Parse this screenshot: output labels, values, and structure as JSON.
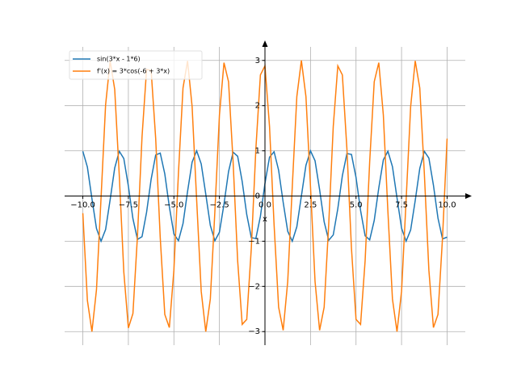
{
  "chart_data": {
    "type": "line",
    "xlabel": "x",
    "x": [
      -10,
      -9.75,
      -9.5,
      -9.25,
      -9,
      -8.75,
      -8.5,
      -8.25,
      -8,
      -7.75,
      -7.5,
      -7.25,
      -7,
      -6.75,
      -6.5,
      -6.25,
      -6,
      -5.75,
      -5.5,
      -5.25,
      -5,
      -4.75,
      -4.5,
      -4.25,
      -4,
      -3.75,
      -3.5,
      -3.25,
      -3,
      -2.75,
      -2.5,
      -2.25,
      -2,
      -1.75,
      -1.5,
      -1.25,
      -1,
      -0.75,
      -0.5,
      -0.25,
      0,
      0.25,
      0.5,
      0.75,
      1,
      1.25,
      1.5,
      1.75,
      2,
      2.25,
      2.5,
      2.75,
      3,
      3.25,
      3.5,
      3.75,
      4,
      4.25,
      4.5,
      4.75,
      5,
      5.25,
      5.5,
      5.75,
      6,
      6.25,
      6.5,
      6.75,
      7,
      7.25,
      7.5,
      7.75,
      8,
      8.25,
      8.5,
      8.75,
      9,
      9.25,
      9.5,
      9.75,
      10
    ],
    "series": [
      {
        "name": "sin(3*x - 1*6)",
        "color": "#1f77b4",
        "values": [
          0.99,
          0.64,
          -0.06,
          -0.72,
          -1.0,
          -0.74,
          -0.08,
          0.62,
          0.99,
          0.83,
          0.22,
          -0.5,
          -0.96,
          -0.9,
          -0.36,
          0.37,
          0.91,
          0.95,
          0.49,
          -0.24,
          -0.84,
          -0.99,
          -0.61,
          0.1,
          0.75,
          1.0,
          0.71,
          0.04,
          -0.65,
          -0.99,
          -0.8,
          -0.18,
          0.54,
          0.97,
          0.88,
          0.32,
          -0.41,
          -0.92,
          -0.94,
          -0.45,
          0.28,
          0.86,
          0.98,
          0.57,
          -0.14,
          -0.78,
          -1.0,
          -0.68,
          0.0,
          0.68,
          1.0,
          0.78,
          0.14,
          -0.57,
          -0.98,
          -0.86,
          -0.28,
          0.45,
          0.94,
          0.92,
          0.41,
          -0.32,
          -0.88,
          -0.97,
          -0.54,
          0.18,
          0.8,
          0.99,
          0.65,
          -0.04,
          -0.71,
          -1.0,
          -0.75,
          -0.1,
          0.61,
          0.99,
          0.84,
          0.24,
          -0.49,
          -0.95,
          -0.91
        ]
      },
      {
        "name": "f'(x) = 3*cos(-6 + 3*x)",
        "color": "#ff7f0e",
        "values": [
          -0.38,
          -2.31,
          -3.0,
          -2.07,
          -0.04,
          2.02,
          2.99,
          2.36,
          0.46,
          -1.68,
          -2.92,
          -2.6,
          -0.88,
          1.31,
          2.8,
          2.78,
          1.27,
          -0.92,
          -2.62,
          -2.91,
          -1.64,
          0.51,
          2.39,
          2.99,
          1.98,
          -0.09,
          -2.11,
          -3.0,
          -2.28,
          -0.34,
          1.79,
          2.95,
          2.53,
          0.76,
          -1.43,
          -2.84,
          -2.73,
          -1.16,
          1.04,
          2.68,
          2.88,
          1.54,
          -0.63,
          -2.46,
          -2.97,
          -1.89,
          0.21,
          2.2,
          3.0,
          2.2,
          0.21,
          -1.89,
          -2.97,
          -2.46,
          -0.63,
          1.54,
          2.88,
          2.68,
          1.04,
          -1.16,
          -2.73,
          -2.84,
          -1.43,
          0.76,
          2.53,
          2.95,
          1.79,
          -0.34,
          -2.28,
          -3.0,
          -2.11,
          -0.09,
          1.98,
          2.99,
          2.39,
          0.51,
          -1.64,
          -2.91,
          -2.62,
          -0.92,
          1.27
        ]
      }
    ],
    "xlim": [
      -11,
      11
    ],
    "ylim": [
      -3.3,
      3.3
    ],
    "xticks": [
      {
        "value": -10,
        "label": "−10.0"
      },
      {
        "value": -7.5,
        "label": "−7.5"
      },
      {
        "value": -5,
        "label": "−5.0"
      },
      {
        "value": -2.5,
        "label": "−2.5"
      },
      {
        "value": 0,
        "label": "0.0"
      },
      {
        "value": 2.5,
        "label": "2.5"
      },
      {
        "value": 5,
        "label": "5.0"
      },
      {
        "value": 7.5,
        "label": "7.5"
      },
      {
        "value": 10,
        "label": "10.0"
      }
    ],
    "yticks": [
      {
        "value": -3,
        "label": "−3"
      },
      {
        "value": -2,
        "label": "−2"
      },
      {
        "value": -1,
        "label": "−1"
      },
      0,
      1,
      2,
      3
    ],
    "grid": true,
    "legend": "upper left"
  }
}
